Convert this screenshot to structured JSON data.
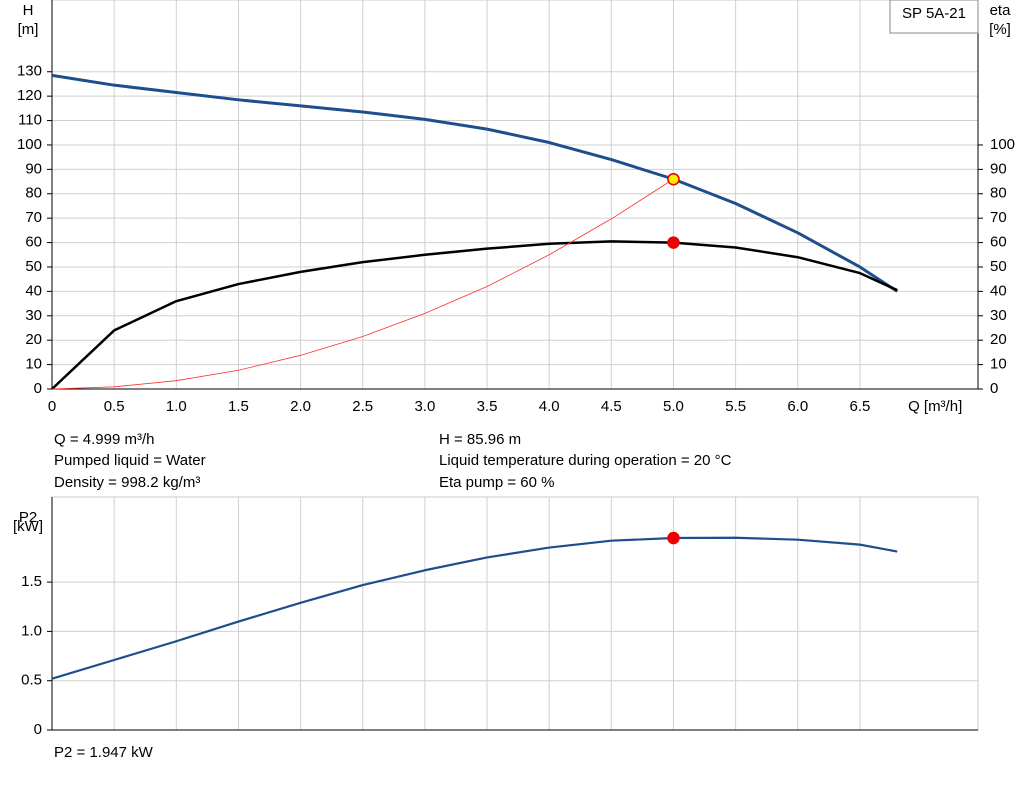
{
  "chart_data": [
    {
      "type": "line",
      "label": "SP 5A-21",
      "y_label": "H",
      "y_unit": "[m]",
      "y2_label": "eta",
      "y2_unit": "[%]",
      "x_label": "Q [m³/h]",
      "xlim": [
        0,
        7.45
      ],
      "ylim": [
        0,
        159.4
      ],
      "y2lim": [
        0,
        159.4
      ],
      "grid": true,
      "xticks": [
        0,
        0.5,
        {
          "value": 1,
          "label": "1.0"
        },
        1.5,
        {
          "value": 2,
          "label": "2.0"
        },
        2.5,
        {
          "value": 3,
          "label": "3.0"
        },
        3.5,
        {
          "value": 4,
          "label": "4.0"
        },
        4.5,
        {
          "value": 5,
          "label": "5.0"
        },
        5.5,
        {
          "value": 6,
          "label": "6.0"
        },
        6.5
      ],
      "yticks": [
        0,
        10,
        20,
        30,
        40,
        50,
        60,
        70,
        80,
        90,
        100,
        110,
        120,
        130
      ],
      "y2ticks": [
        0,
        10,
        20,
        30,
        40,
        50,
        60,
        70,
        80,
        90,
        100
      ],
      "series": [
        {
          "color": "#1f4e8c",
          "width": 3,
          "x": [
            0,
            0.5,
            1,
            1.5,
            2,
            2.5,
            3,
            3.5,
            4,
            4.5,
            5,
            5.5,
            6,
            6.5,
            6.8
          ],
          "values": [
            128.5,
            124.5,
            121.5,
            118.5,
            116,
            113.5,
            110.5,
            106.5,
            101,
            94,
            86,
            76,
            64,
            50,
            40
          ]
        },
        {
          "color": "#000000",
          "width": 2.5,
          "axis": "y2",
          "x": [
            0,
            0.5,
            1,
            1.5,
            2,
            2.5,
            3,
            3.5,
            4,
            4.5,
            5,
            5.5,
            6,
            6.5,
            6.8
          ],
          "values": [
            0,
            24,
            36,
            43,
            48,
            52,
            55,
            57.5,
            59.5,
            60.5,
            60,
            58,
            54,
            47.5,
            40.5
          ]
        },
        {
          "color": "#ff3030",
          "width": 0.8,
          "x": [
            0,
            0.5,
            1,
            1.5,
            2,
            2.5,
            3,
            3.5,
            4,
            4.5,
            5
          ],
          "values": [
            0,
            0.9,
            3.4,
            7.7,
            13.8,
            21.5,
            31,
            42,
            55,
            69.7,
            86
          ]
        }
      ],
      "points": [
        {
          "x": 5,
          "y": 85.96,
          "color": "#ffee00",
          "stroke": "#e00000"
        },
        {
          "x": 5,
          "y": 60,
          "axis": "y2",
          "color": "#ee0000",
          "stroke": "#ee0000"
        }
      ]
    },
    {
      "type": "line",
      "y_label": "P2",
      "y_unit": "[kW]",
      "xlim": [
        0,
        7.45
      ],
      "ylim": [
        0,
        2.363
      ],
      "grid": true,
      "xticks": [
        0,
        0.5,
        1,
        1.5,
        2,
        2.5,
        3,
        3.5,
        4,
        4.5,
        5,
        5.5,
        6,
        6.5
      ],
      "yticks": [
        0,
        0.5,
        {
          "value": 1,
          "label": "1.0"
        },
        1.5
      ],
      "series": [
        {
          "color": "#1f4e8c",
          "width": 2.2,
          "x": [
            0,
            0.5,
            1,
            1.5,
            2,
            2.5,
            3,
            3.5,
            4,
            4.5,
            5,
            5.5,
            6,
            6.5,
            6.8
          ],
          "values": [
            0.52,
            0.71,
            0.9,
            1.1,
            1.29,
            1.47,
            1.62,
            1.75,
            1.85,
            1.92,
            1.947,
            1.95,
            1.93,
            1.88,
            1.81
          ]
        }
      ],
      "points": [
        {
          "x": 5,
          "y": 1.947,
          "color": "#ee0000",
          "stroke": "#ee0000"
        }
      ]
    }
  ],
  "info_left": [
    "Q = 4.999 m³/h",
    "Pumped liquid = Water",
    "Density = 998.2 kg/m³"
  ],
  "info_right": [
    "H = 85.96 m",
    "Liquid temperature during operation = 20 °C",
    "Eta pump = 60 %"
  ],
  "footer": "P2 = 1.947 kW"
}
